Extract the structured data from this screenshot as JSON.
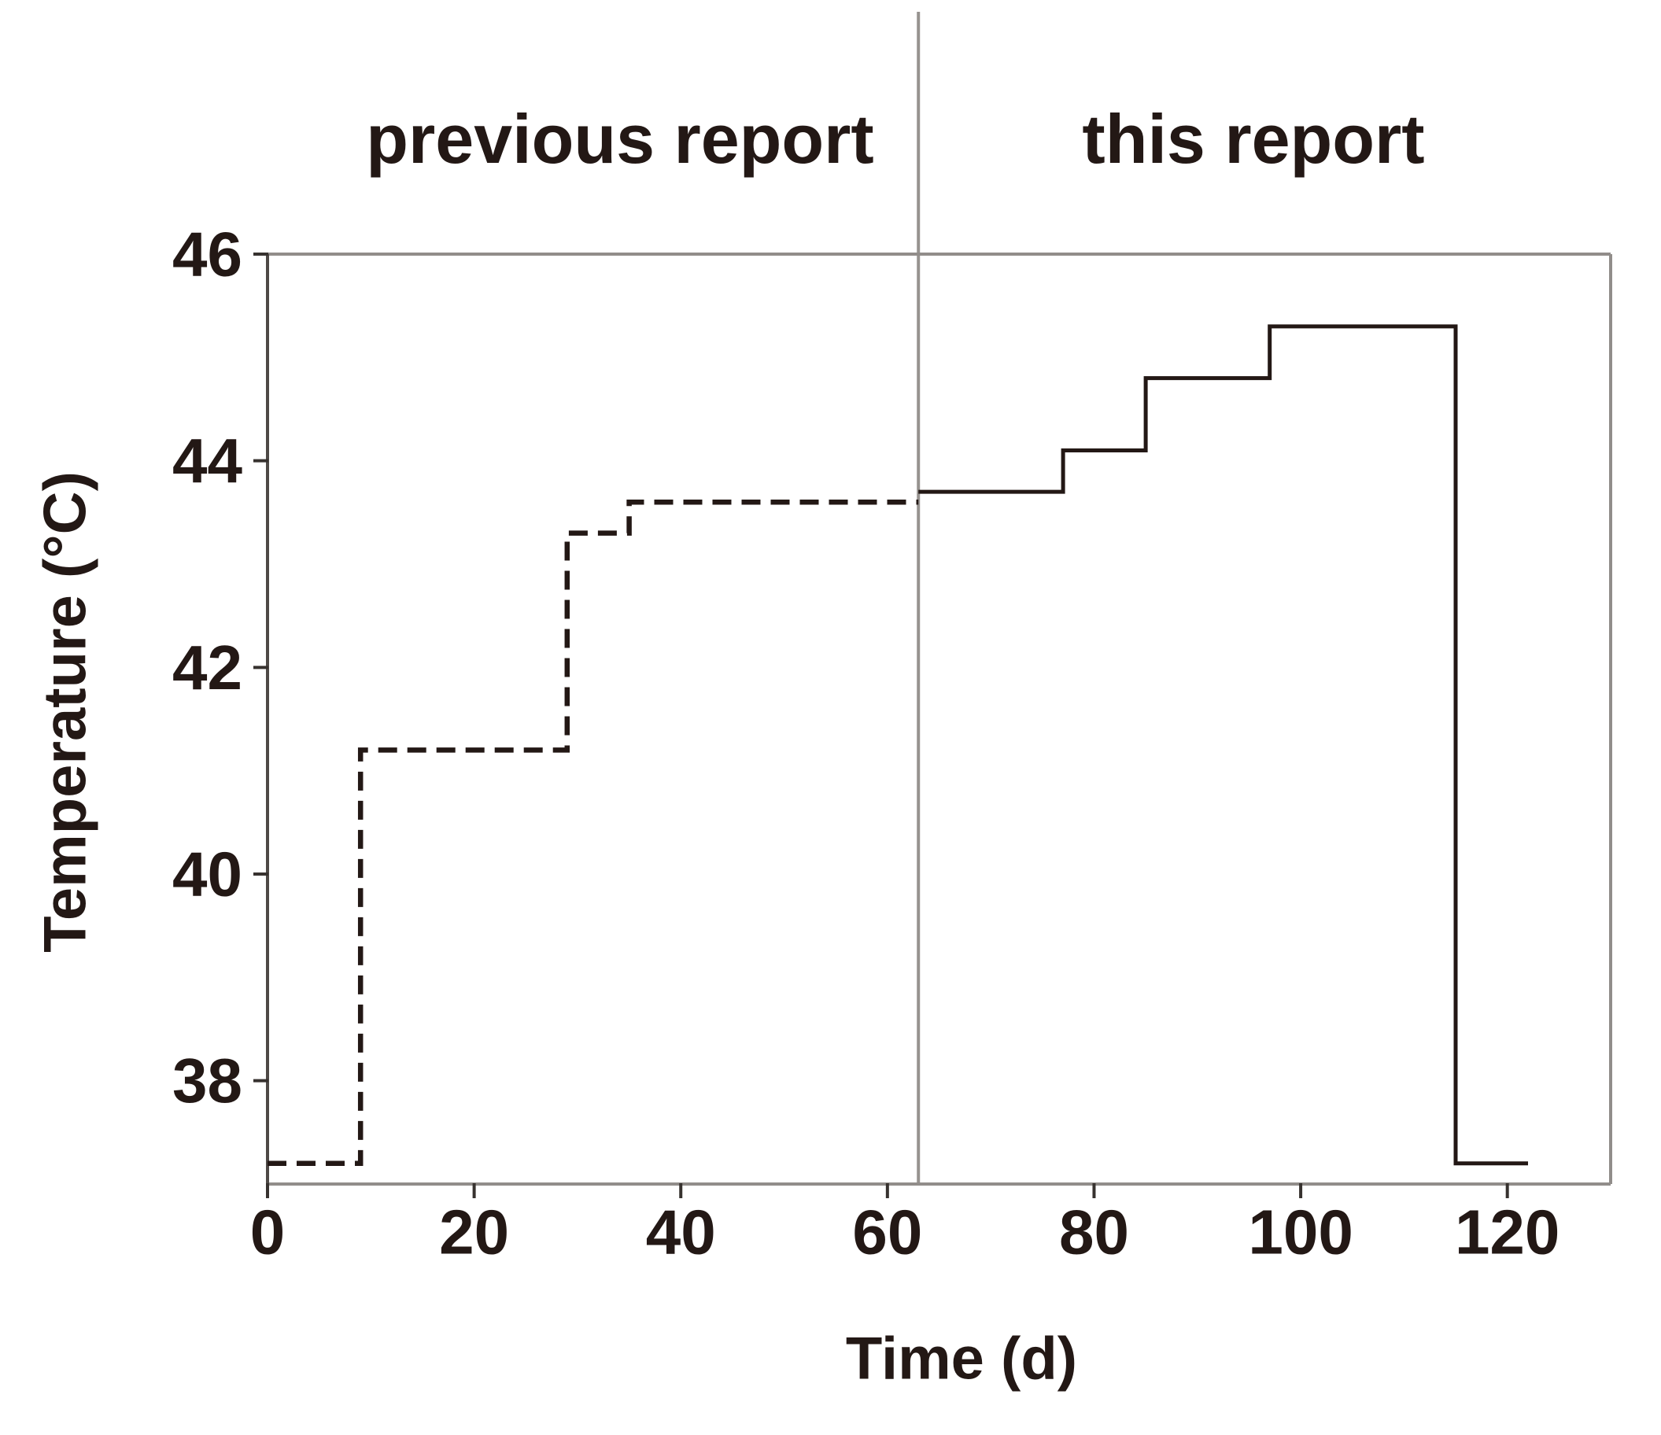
{
  "section_labels": {
    "previous": "previous report",
    "current": "this report"
  },
  "chart_data": {
    "type": "line",
    "title": "",
    "xlabel": "Time (d)",
    "ylabel": "Temperature (°C)",
    "xlim": [
      0,
      130
    ],
    "ylim": [
      37,
      46
    ],
    "x_ticks": [
      0,
      20,
      40,
      60,
      80,
      100,
      120
    ],
    "y_ticks": [
      38,
      40,
      42,
      44,
      46
    ],
    "grid": false,
    "legend_position": "none",
    "divider_day": 63,
    "series": [
      {
        "name": "previous report",
        "line_style": "dashed",
        "points": [
          [
            0,
            37.2
          ],
          [
            9,
            37.2
          ],
          [
            9,
            41.2
          ],
          [
            29,
            41.2
          ],
          [
            29,
            43.3
          ],
          [
            35,
            43.3
          ],
          [
            35,
            43.6
          ],
          [
            63,
            43.6
          ]
        ]
      },
      {
        "name": "this report",
        "line_style": "solid",
        "points": [
          [
            63,
            43.7
          ],
          [
            77,
            43.7
          ],
          [
            77,
            44.1
          ],
          [
            85,
            44.1
          ],
          [
            85,
            44.8
          ],
          [
            97,
            44.8
          ],
          [
            97,
            45.3
          ],
          [
            115,
            45.3
          ],
          [
            115,
            37.2
          ],
          [
            122,
            37.2
          ]
        ]
      }
    ],
    "colors": {
      "line": "#231815",
      "border": "#918d8a",
      "axis_left": "#4e4946",
      "divider": "#96928f",
      "tick": "#37322f",
      "text": "#231815"
    }
  }
}
